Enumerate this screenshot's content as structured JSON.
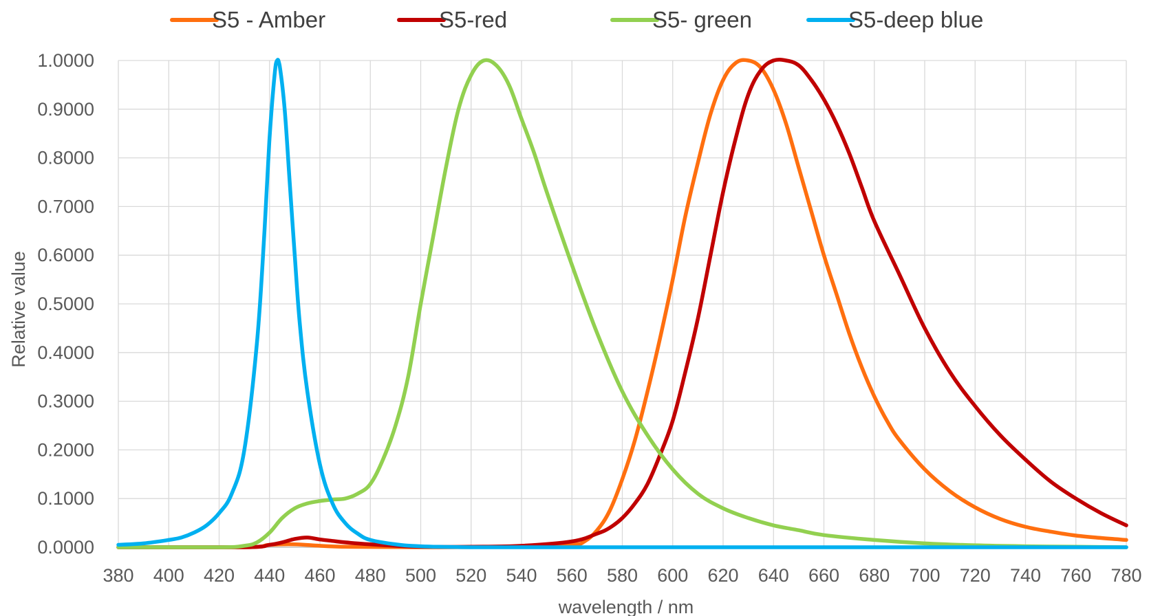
{
  "chart_data": {
    "type": "line",
    "title": "",
    "xlabel": "wavelength / nm",
    "ylabel": "Relative value",
    "xlim": [
      380,
      780
    ],
    "ylim": [
      0,
      1
    ],
    "x_ticks": [
      "380",
      "400",
      "420",
      "440",
      "460",
      "480",
      "500",
      "520",
      "540",
      "560",
      "580",
      "600",
      "620",
      "640",
      "660",
      "680",
      "700",
      "720",
      "740",
      "760",
      "780"
    ],
    "y_ticks": [
      "0.0000",
      "0.1000",
      "0.2000",
      "0.3000",
      "0.4000",
      "0.5000",
      "0.6000",
      "0.7000",
      "0.8000",
      "0.9000",
      "1.0000"
    ],
    "grid": true,
    "legend_position": "top",
    "series": [
      {
        "name": "S5 - Amber",
        "color": "#ff6f0f",
        "x": [
          380,
          430,
          440,
          450,
          460,
          470,
          500,
          540,
          560,
          565,
          570,
          575,
          580,
          585,
          590,
          595,
          600,
          605,
          610,
          615,
          620,
          625,
          630,
          635,
          640,
          645,
          650,
          655,
          660,
          665,
          670,
          675,
          680,
          685,
          690,
          700,
          710,
          720,
          730,
          740,
          750,
          760,
          770,
          780
        ],
        "y": [
          0.0,
          0.0,
          0.005,
          0.006,
          0.003,
          0.001,
          0.0,
          0.001,
          0.005,
          0.012,
          0.035,
          0.075,
          0.14,
          0.22,
          0.32,
          0.43,
          0.55,
          0.68,
          0.79,
          0.89,
          0.96,
          0.995,
          1.0,
          0.985,
          0.94,
          0.87,
          0.78,
          0.69,
          0.6,
          0.52,
          0.44,
          0.37,
          0.31,
          0.26,
          0.22,
          0.16,
          0.115,
          0.082,
          0.058,
          0.042,
          0.032,
          0.024,
          0.019,
          0.015
        ]
      },
      {
        "name": "S5-red",
        "color": "#c00000",
        "x": [
          380,
          430,
          440,
          445,
          450,
          455,
          460,
          465,
          470,
          480,
          490,
          500,
          520,
          540,
          560,
          570,
          575,
          580,
          585,
          590,
          595,
          600,
          605,
          610,
          615,
          620,
          625,
          630,
          635,
          640,
          645,
          650,
          655,
          660,
          665,
          670,
          675,
          680,
          690,
          700,
          710,
          720,
          730,
          740,
          750,
          760,
          770,
          780
        ],
        "y": [
          0.0,
          0.0,
          0.005,
          0.01,
          0.017,
          0.02,
          0.016,
          0.013,
          0.01,
          0.006,
          0.003,
          0.001,
          0.001,
          0.003,
          0.012,
          0.028,
          0.04,
          0.06,
          0.09,
          0.13,
          0.19,
          0.26,
          0.36,
          0.47,
          0.6,
          0.73,
          0.84,
          0.93,
          0.98,
          1.0,
          1.0,
          0.99,
          0.96,
          0.92,
          0.87,
          0.81,
          0.74,
          0.67,
          0.56,
          0.45,
          0.36,
          0.29,
          0.23,
          0.18,
          0.135,
          0.1,
          0.07,
          0.045
        ]
      },
      {
        "name": "S5- green",
        "color": "#92d050",
        "x": [
          380,
          420,
          430,
          435,
          440,
          445,
          450,
          455,
          460,
          465,
          470,
          475,
          480,
          485,
          490,
          495,
          500,
          505,
          510,
          515,
          520,
          525,
          530,
          535,
          540,
          545,
          550,
          560,
          570,
          580,
          590,
          600,
          610,
          620,
          630,
          640,
          650,
          660,
          680,
          700,
          720,
          740,
          760,
          780
        ],
        "y": [
          0.0,
          0.0,
          0.003,
          0.01,
          0.03,
          0.06,
          0.08,
          0.09,
          0.095,
          0.098,
          0.1,
          0.11,
          0.13,
          0.18,
          0.25,
          0.35,
          0.5,
          0.64,
          0.78,
          0.9,
          0.97,
          1.0,
          0.99,
          0.95,
          0.88,
          0.81,
          0.73,
          0.58,
          0.44,
          0.32,
          0.23,
          0.16,
          0.11,
          0.08,
          0.06,
          0.045,
          0.035,
          0.025,
          0.015,
          0.008,
          0.004,
          0.002,
          0.001,
          0.0
        ]
      },
      {
        "name": "S5-deep blue",
        "color": "#00b0f0",
        "x": [
          380,
          390,
          400,
          405,
          410,
          415,
          420,
          425,
          430,
          435,
          438,
          440,
          442,
          443,
          444,
          446,
          448,
          450,
          452,
          455,
          460,
          465,
          470,
          475,
          480,
          490,
          500,
          520,
          560,
          600,
          700,
          780
        ],
        "y": [
          0.005,
          0.008,
          0.015,
          0.02,
          0.03,
          0.045,
          0.07,
          0.11,
          0.2,
          0.42,
          0.65,
          0.84,
          0.97,
          1.0,
          0.99,
          0.9,
          0.75,
          0.6,
          0.46,
          0.32,
          0.17,
          0.09,
          0.05,
          0.028,
          0.015,
          0.006,
          0.002,
          0.0,
          0.0,
          0.0,
          0.0,
          0.0
        ]
      }
    ]
  }
}
